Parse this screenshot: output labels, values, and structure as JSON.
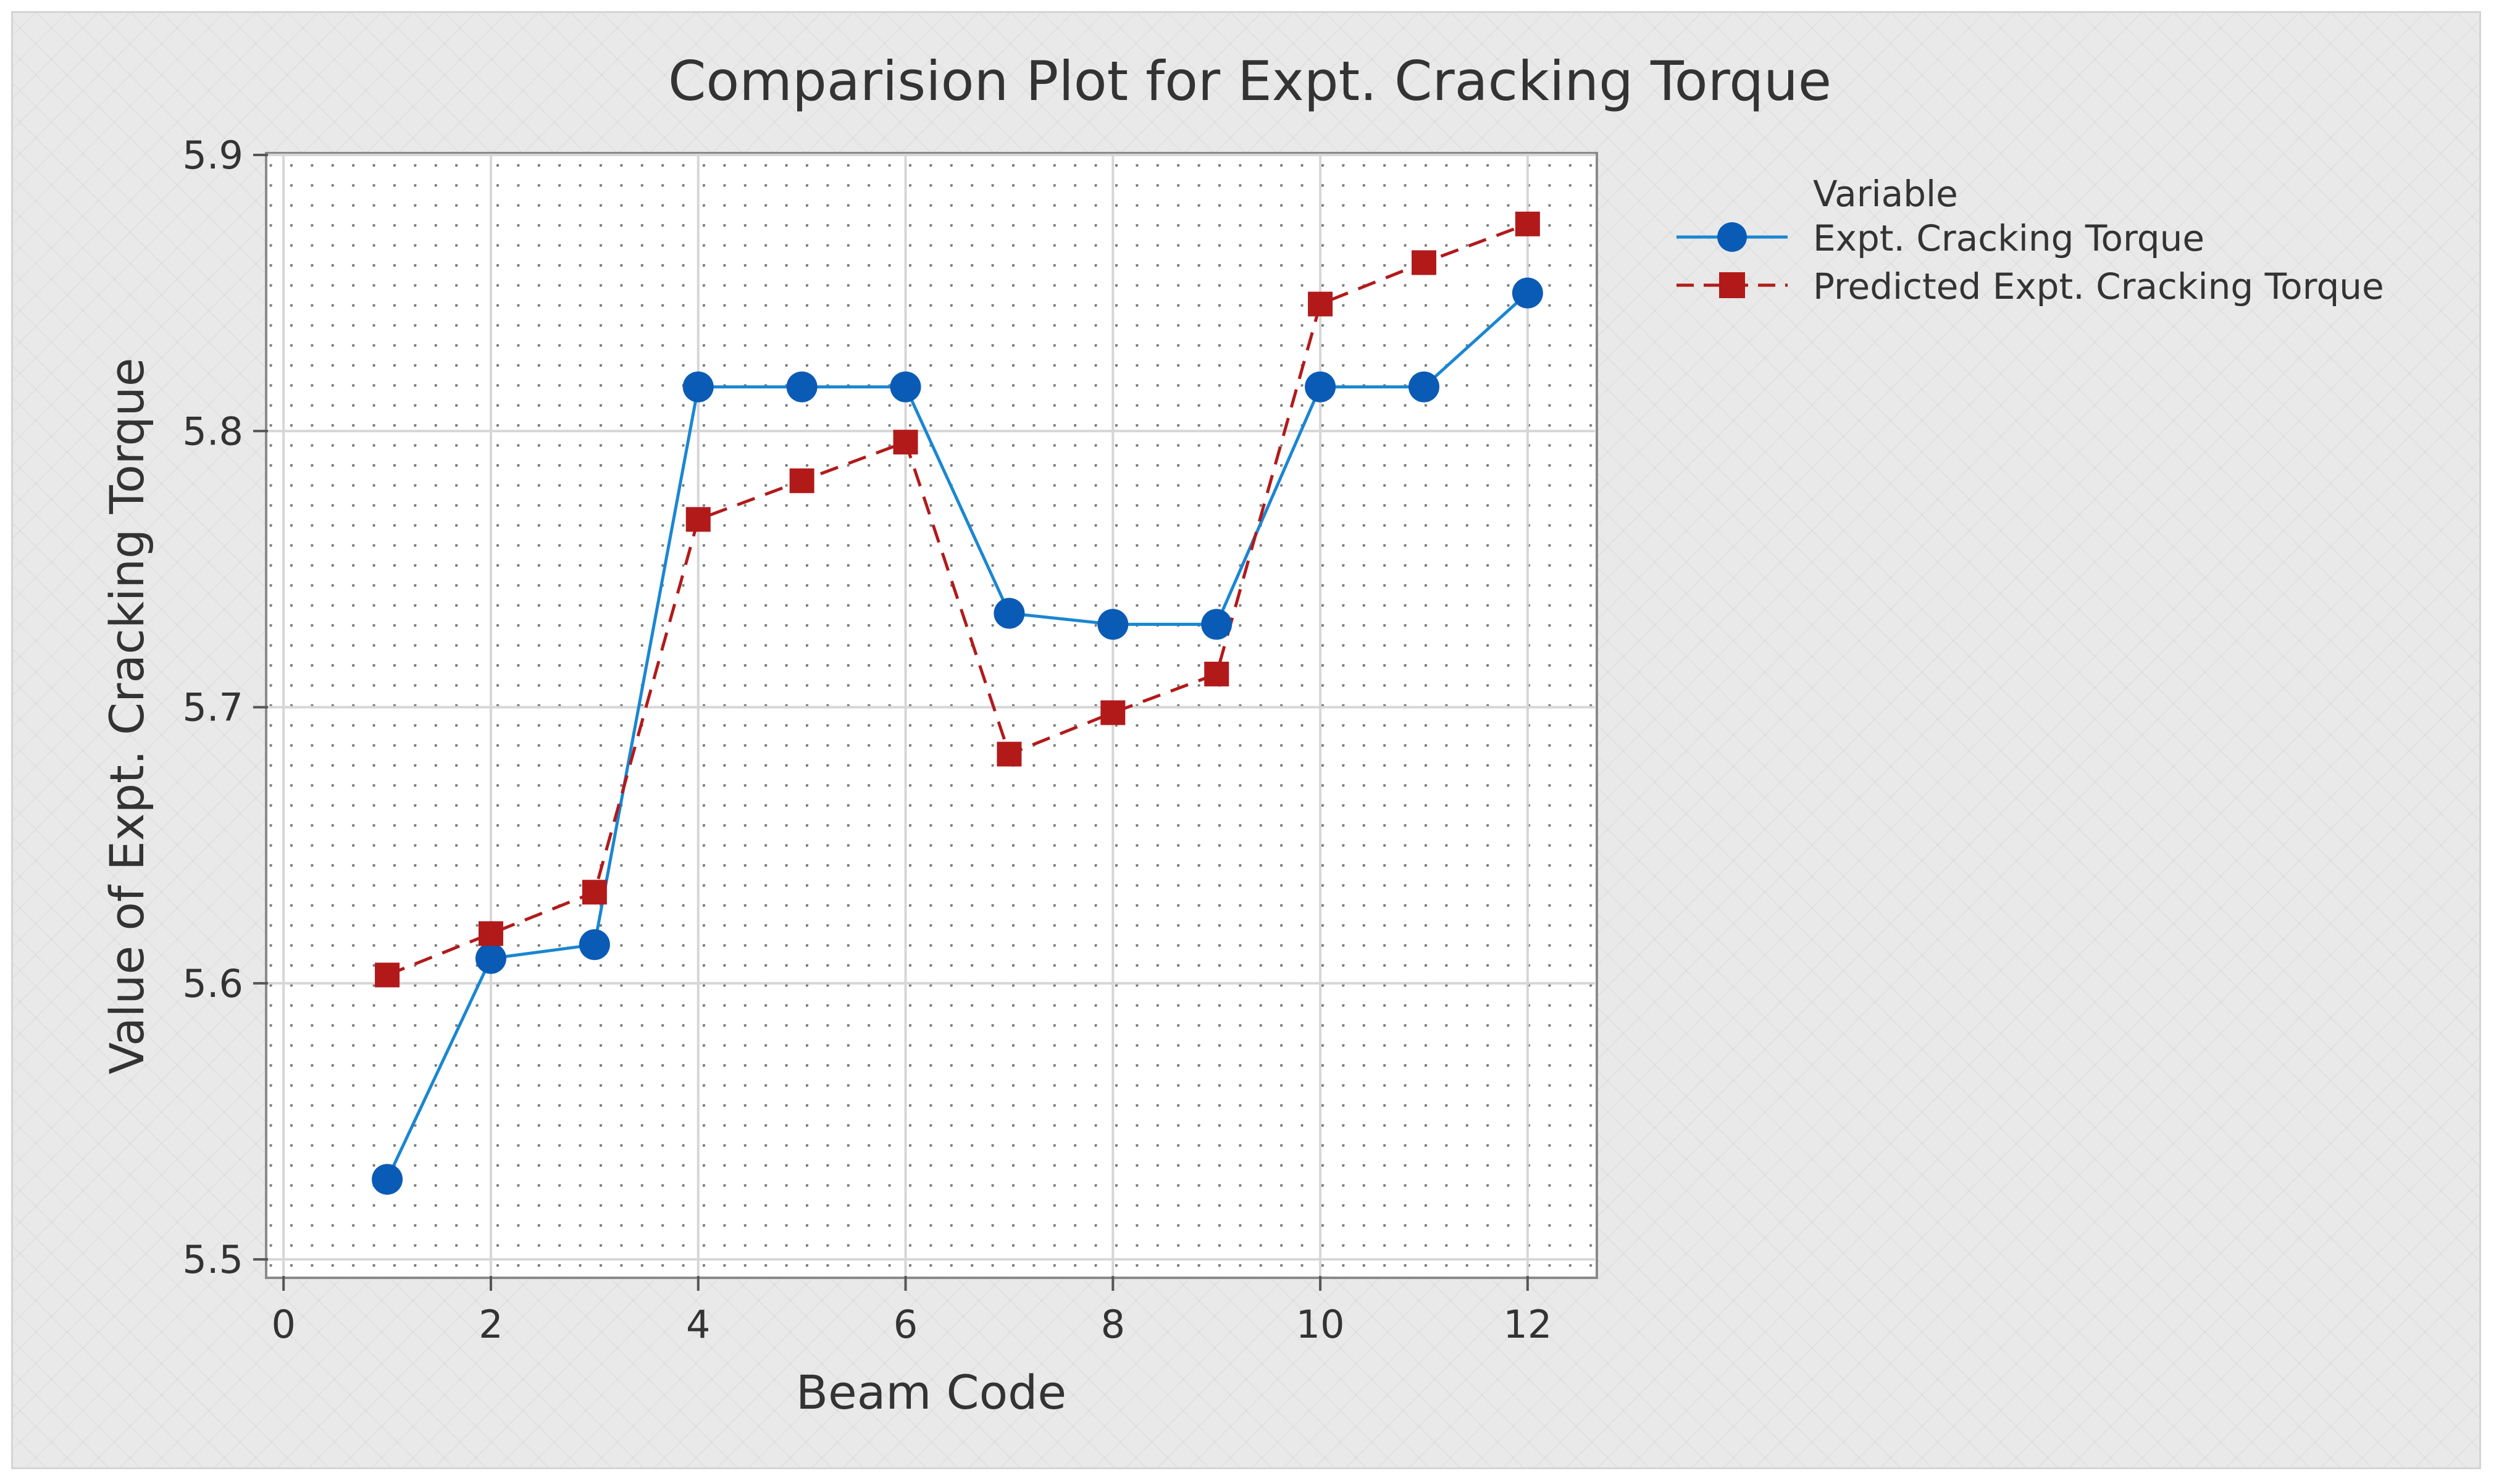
{
  "chart_data": {
    "type": "line",
    "title": "Comparision Plot for Expt. Cracking Torque",
    "xlabel": "Beam Code",
    "ylabel": "Value of Expt. Cracking Torque",
    "xlim": [
      -0.15,
      12.65
    ],
    "ylim": [
      5.494,
      5.9
    ],
    "xticks": [
      0,
      2,
      4,
      6,
      8,
      10,
      12
    ],
    "yticks": [
      5.5,
      5.6,
      5.7,
      5.8,
      5.9
    ],
    "grid": true,
    "legend": {
      "title": "Variable",
      "position": "top-right, outside plot"
    },
    "x": [
      1,
      2,
      3,
      4,
      5,
      6,
      7,
      8,
      9,
      10,
      11,
      12
    ],
    "series": [
      {
        "name": "Expt. Cracking Torque",
        "color": "#0a5bb5",
        "line_color": "#1a86d2",
        "marker": "circle",
        "line_style": "solid",
        "values": [
          5.529,
          5.609,
          5.614,
          5.816,
          5.816,
          5.816,
          5.734,
          5.73,
          5.73,
          5.816,
          5.816,
          5.85
        ]
      },
      {
        "name": "Predicted Expt. Cracking Torque",
        "color": "#b21a1a",
        "line_color": "#b21a1a",
        "marker": "square",
        "line_style": "dashed",
        "values": [
          5.603,
          5.618,
          5.633,
          5.768,
          5.782,
          5.796,
          5.683,
          5.698,
          5.712,
          5.846,
          5.861,
          5.875
        ]
      }
    ]
  }
}
